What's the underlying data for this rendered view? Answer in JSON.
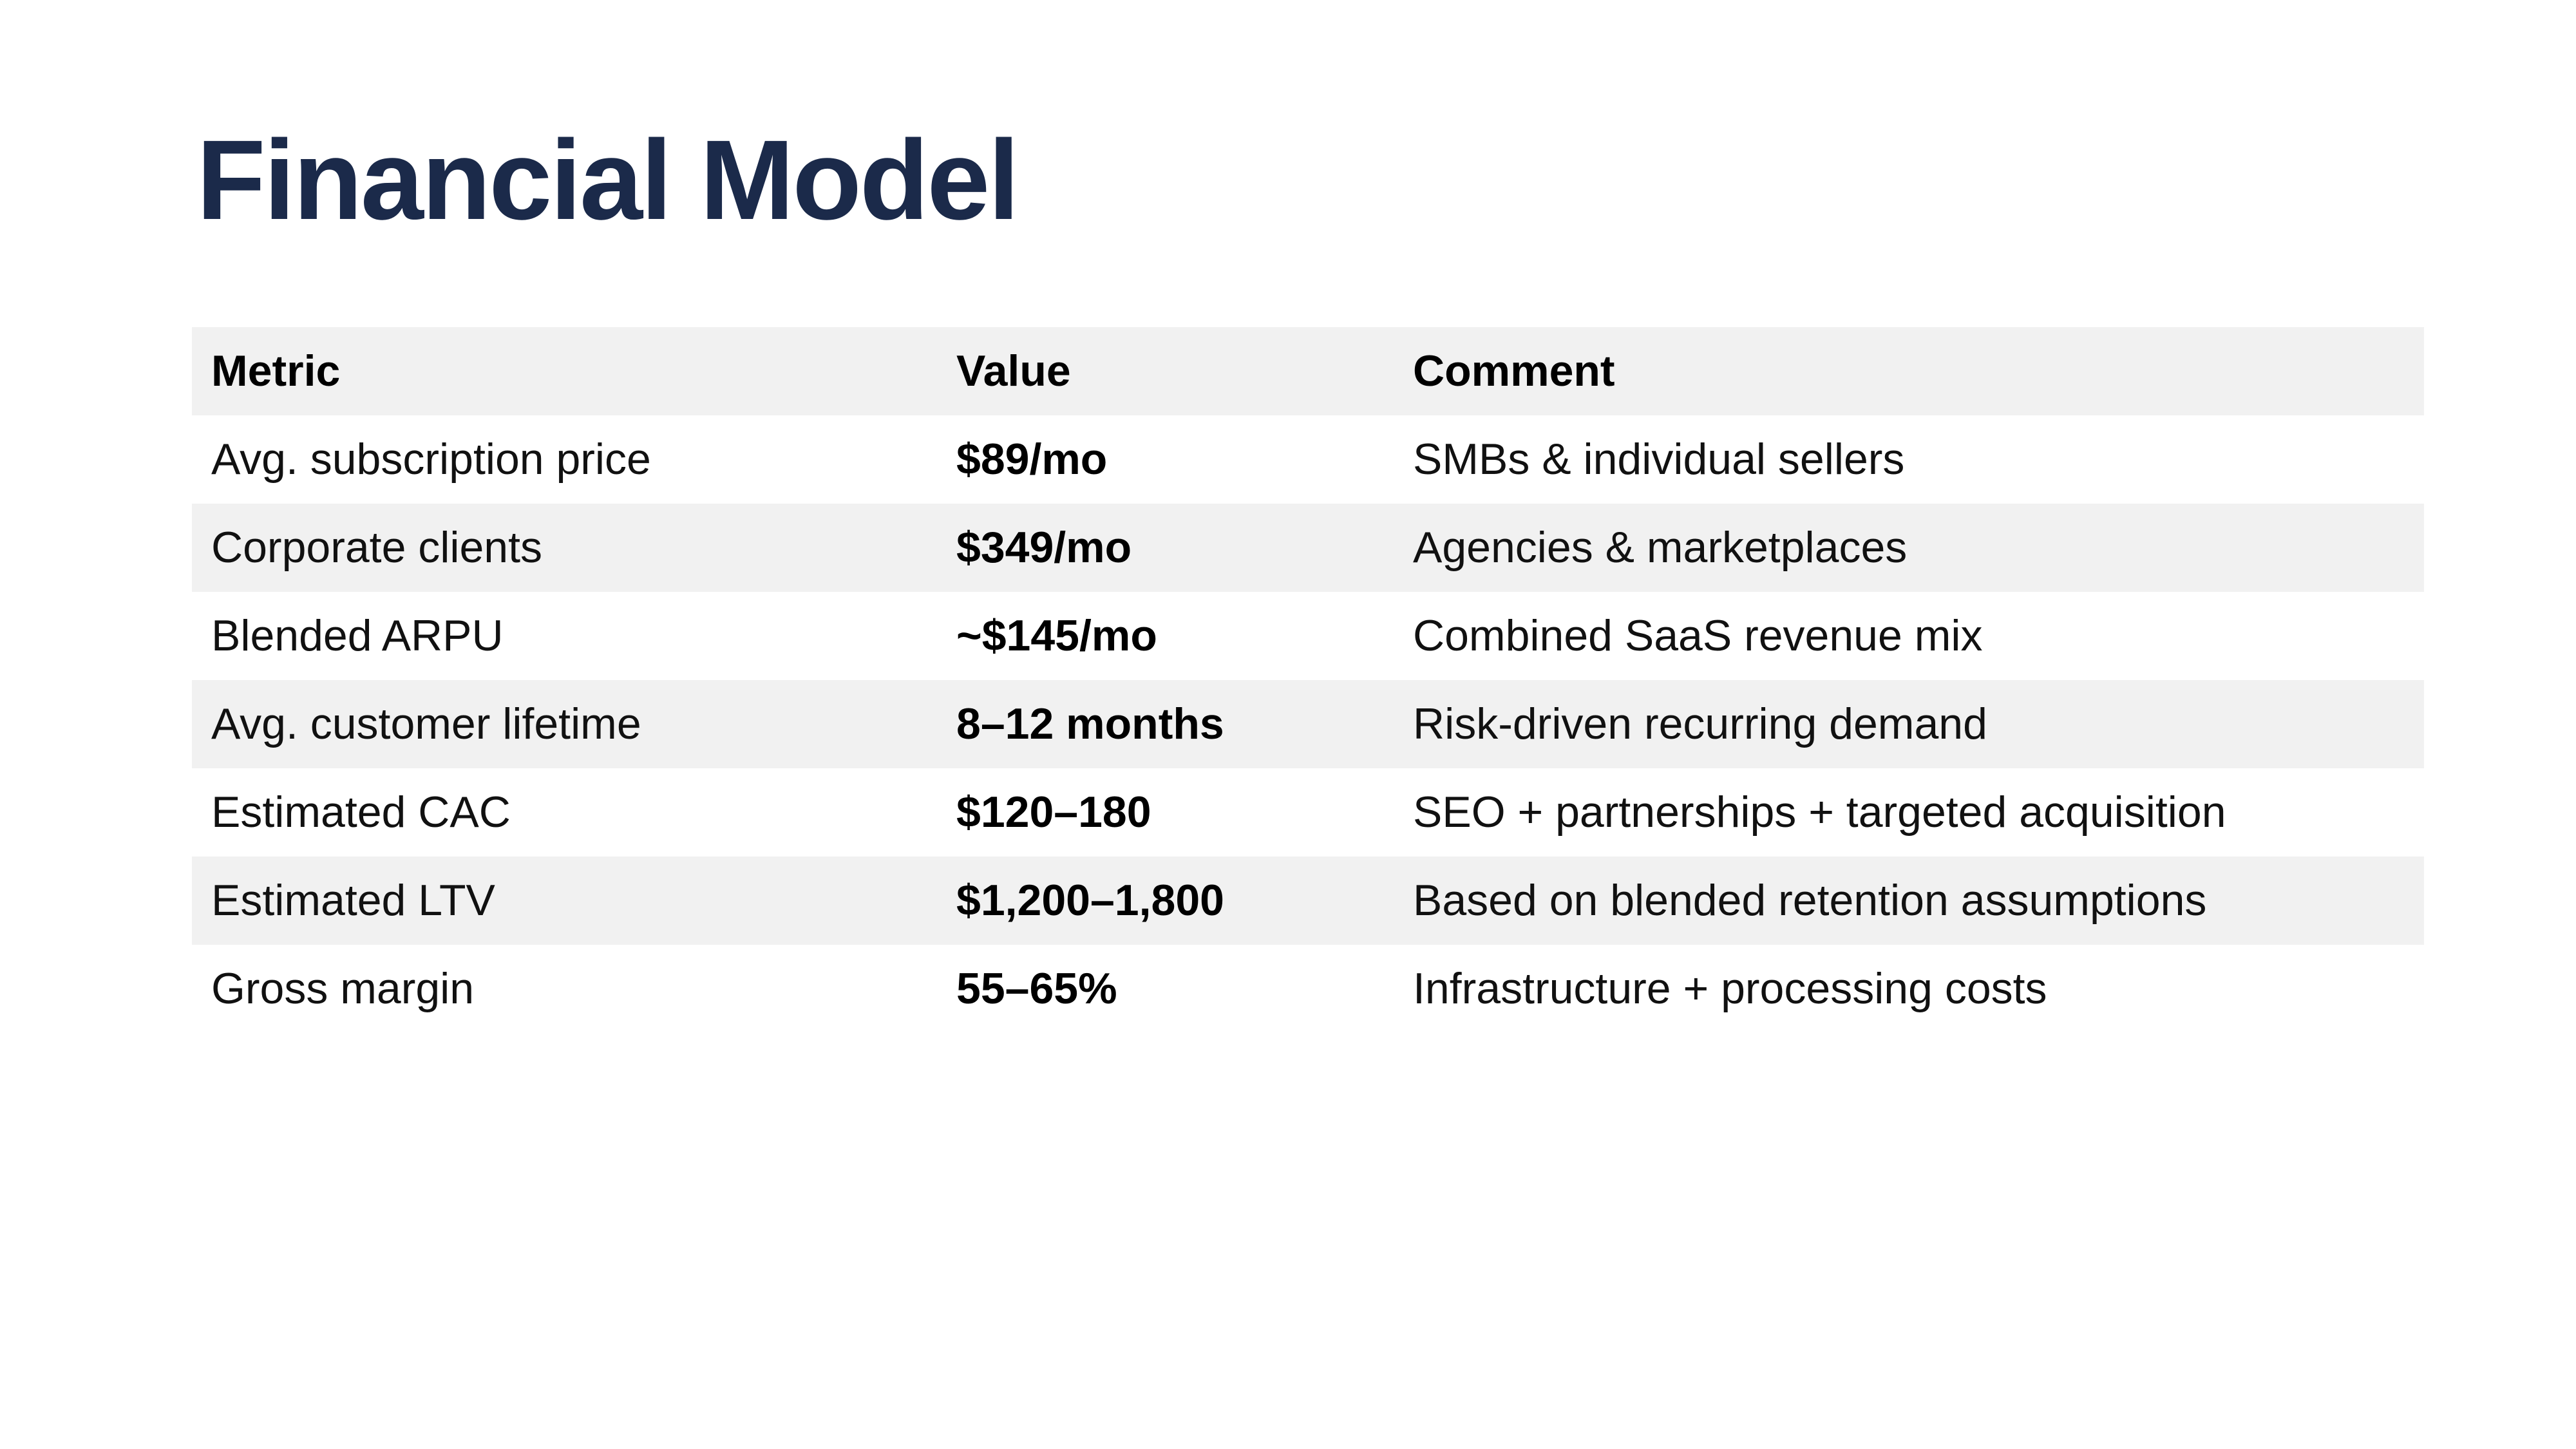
{
  "slide": {
    "title": "Financial Model"
  },
  "table": {
    "headers": [
      "Metric",
      "Value",
      "Comment"
    ],
    "rows": [
      {
        "metric": "Avg. subscription price",
        "value": "$89/mo",
        "comment": "SMBs & individual sellers"
      },
      {
        "metric": "Corporate clients",
        "value": "$349/mo",
        "comment": "Agencies & marketplaces"
      },
      {
        "metric": "Blended ARPU",
        "value": "~$145/mo",
        "comment": "Combined SaaS revenue mix"
      },
      {
        "metric": "Avg. customer lifetime",
        "value": "8–12 months",
        "comment": "Risk-driven recurring demand"
      },
      {
        "metric": "Estimated CAC",
        "value": "$120–180",
        "comment": "SEO + partnerships + targeted acquisition"
      },
      {
        "metric": "Estimated LTV",
        "value": "$1,200–1,800",
        "comment": "Based on blended retention assumptions"
      },
      {
        "metric": "Gross margin",
        "value": "55–65%",
        "comment": "Infrastructure + processing costs"
      }
    ]
  },
  "colors": {
    "title": "#1b2a4a",
    "stripe": "#f1f1f1",
    "background": "#ffffff"
  }
}
